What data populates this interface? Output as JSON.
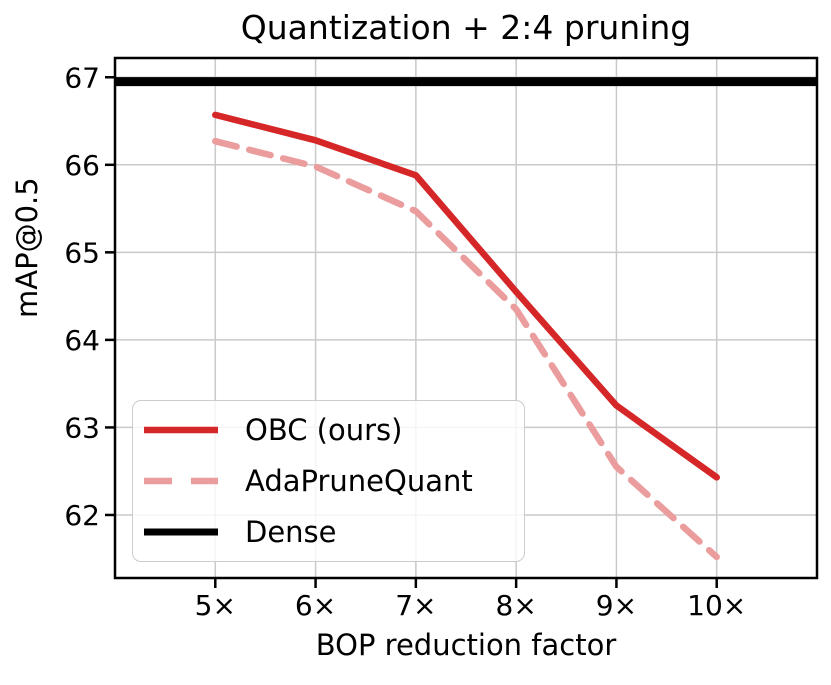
{
  "page": {
    "background": "#ffffff"
  },
  "chart_data": {
    "type": "line",
    "title": "Quantization + 2:4 pruning",
    "xlabel": "BOP reduction factor",
    "ylabel": "mAP@0.5",
    "x": [
      5,
      6,
      7,
      8,
      9,
      10
    ],
    "x_tick_labels": [
      "5×",
      "6×",
      "7×",
      "8×",
      "9×",
      "10×"
    ],
    "y_ticks": [
      62,
      63,
      64,
      65,
      66,
      67
    ],
    "y_tick_labels": [
      "62",
      "63",
      "64",
      "65",
      "66",
      "67"
    ],
    "xlim": [
      4,
      11
    ],
    "ylim": [
      61.28,
      67.22
    ],
    "grid": "on",
    "grid_color": "#c9c9c9",
    "legend_position": "lower left",
    "series": [
      {
        "name": "OBC (ours)",
        "type": "line",
        "style": "solid",
        "color": "#d62728",
        "values": [
          66.57,
          66.28,
          65.88,
          64.55,
          63.25,
          62.43
        ]
      },
      {
        "name": "AdaPruneQuant",
        "type": "line",
        "style": "dashed",
        "color": "#eb9d9e",
        "values": [
          66.27,
          65.98,
          65.47,
          64.35,
          62.55,
          61.52
        ]
      },
      {
        "name": "Dense",
        "type": "hline",
        "style": "solid",
        "color": "#000000",
        "value": 66.95
      }
    ]
  }
}
